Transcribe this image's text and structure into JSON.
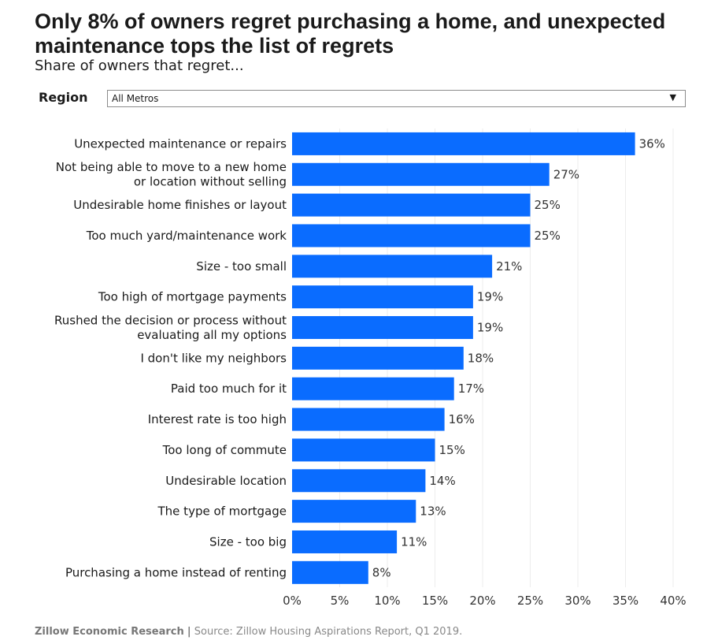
{
  "header": {
    "title": "Only 8% of owners regret purchasing a home, and unexpected maintenance tops the list of regrets",
    "subtitle": "Share of owners that regret..."
  },
  "filter": {
    "label": "Region",
    "selected": "All Metros",
    "arrow_icon": "▼"
  },
  "chart_data": {
    "type": "bar",
    "orientation": "horizontal",
    "categories": [
      [
        "Unexpected maintenance or repairs"
      ],
      [
        "Not being able to move to a new home",
        "or location without selling"
      ],
      [
        "Undesirable home finishes or layout"
      ],
      [
        "Too much yard/maintenance work"
      ],
      [
        "Size - too small"
      ],
      [
        "Too high of mortgage payments"
      ],
      [
        "Rushed the decision or process without",
        "evaluating all my options"
      ],
      [
        "I don't like my neighbors"
      ],
      [
        "Paid too much for it"
      ],
      [
        "Interest rate is too high"
      ],
      [
        "Too long of commute"
      ],
      [
        "Undesirable location"
      ],
      [
        "The type of mortgage"
      ],
      [
        "Size - too big"
      ],
      [
        "Purchasing a home instead of renting"
      ]
    ],
    "values": [
      36,
      27,
      25,
      25,
      21,
      19,
      19,
      18,
      17,
      16,
      15,
      14,
      13,
      11,
      8
    ],
    "value_labels": [
      "36%",
      "27%",
      "25%",
      "25%",
      "21%",
      "19%",
      "19%",
      "18%",
      "17%",
      "16%",
      "15%",
      "14%",
      "13%",
      "11%",
      "8%"
    ],
    "xlim": [
      0,
      40
    ],
    "xticks": [
      0,
      5,
      10,
      15,
      20,
      25,
      30,
      35,
      40
    ],
    "xtick_labels": [
      "0%",
      "5%",
      "10%",
      "15%",
      "20%",
      "25%",
      "30%",
      "35%",
      "40%"
    ],
    "bar_color": "#0a6cff",
    "grid": true
  },
  "footer": {
    "org": "Zillow Economic Research",
    "separator": "|",
    "source": "Source: Zillow Housing Aspirations Report, Q1 2019."
  }
}
